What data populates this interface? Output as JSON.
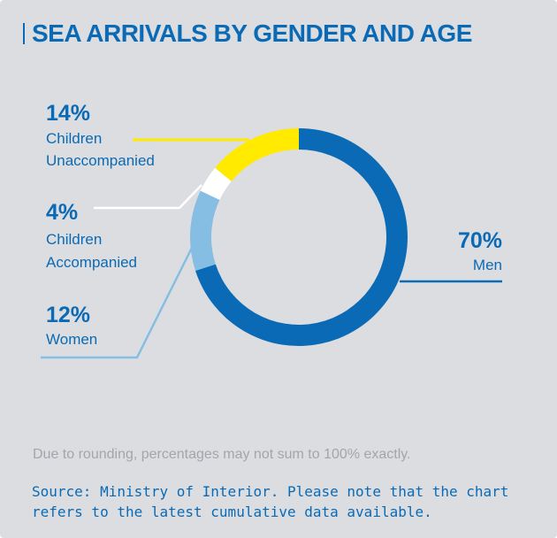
{
  "title": "SEA ARRIVALS BY GENDER AND AGE",
  "chart_data": {
    "type": "pie",
    "style": "donut",
    "title": "SEA ARRIVALS BY GENDER AND AGE",
    "slices": [
      {
        "label": "Men",
        "value": 70,
        "value_label": "70%",
        "color": "#0a6ab5"
      },
      {
        "label": "Women",
        "value": 12,
        "value_label": "12%",
        "color": "#86bde3"
      },
      {
        "label": "Children Accompanied",
        "label_lines": [
          "Children",
          "Accompanied"
        ],
        "value": 4,
        "value_label": "4%",
        "color": "#ffffff"
      },
      {
        "label": "Children Unaccompanied",
        "label_lines": [
          "Children",
          "Unaccompanied"
        ],
        "value": 14,
        "value_label": "14%",
        "color": "#ffea00"
      }
    ],
    "start_angle": "12 o'clock",
    "direction": "clockwise",
    "legend": "none (callout labels)"
  },
  "footnote": "Due to rounding, percentages may not sum to 100% exactly.",
  "source": "Source: Ministry of Interior. Please note that the chart refers to the latest cumulative data available."
}
